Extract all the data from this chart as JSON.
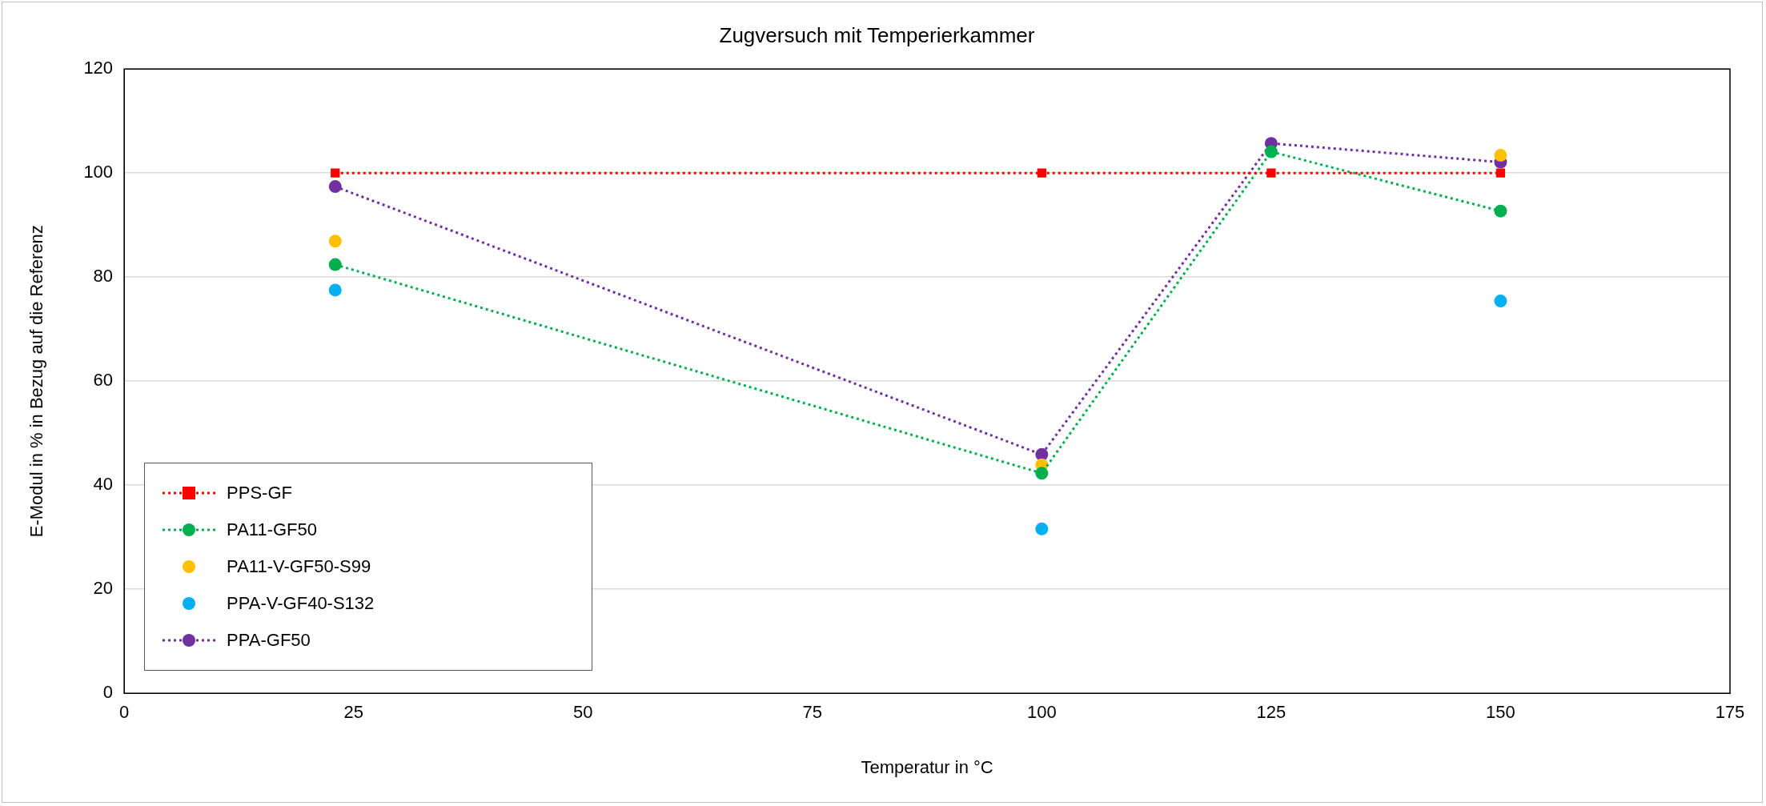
{
  "chart_data": {
    "type": "line",
    "title": "Zugversuch mit Temperierkammer",
    "xlabel": "Temperatur in °C",
    "ylabel": "E-Modul in % in Bezug auf die Referenz",
    "x": [
      23,
      100,
      125,
      150
    ],
    "series": [
      {
        "name": "PPS-GF",
        "color": "#ff0000",
        "values": [
          100,
          100,
          100,
          100
        ],
        "marker": "square",
        "line_style": "dotted"
      },
      {
        "name": "PA11-GF50",
        "color": "#00b050",
        "values": [
          82.4,
          42.3,
          104.1,
          92.7
        ],
        "marker": "circle",
        "line_style": "dotted"
      },
      {
        "name": "PA11-V-GF50-S99",
        "color": "#ffc000",
        "type": "scatter",
        "values": [
          86.9,
          43.9,
          null,
          103.4
        ],
        "marker": "circle"
      },
      {
        "name": "PPA-V-GF40-S132",
        "color": "#00b0f0",
        "type": "scatter",
        "values": [
          77.5,
          31.6,
          null,
          75.4
        ],
        "marker": "circle"
      },
      {
        "name": "PPA-GF50",
        "color": "#7030a0",
        "values": [
          97.4,
          45.9,
          105.7,
          102.1
        ],
        "marker": "circle",
        "line_style": "dotted"
      }
    ],
    "xlim": [
      0,
      175
    ],
    "xticks": [
      0,
      25,
      50,
      75,
      100,
      125,
      150,
      175
    ],
    "ylim": [
      0,
      120
    ],
    "yticks": [
      0,
      20,
      40,
      60,
      80,
      100,
      120
    ],
    "grid": "y",
    "legend": "bottom left"
  }
}
